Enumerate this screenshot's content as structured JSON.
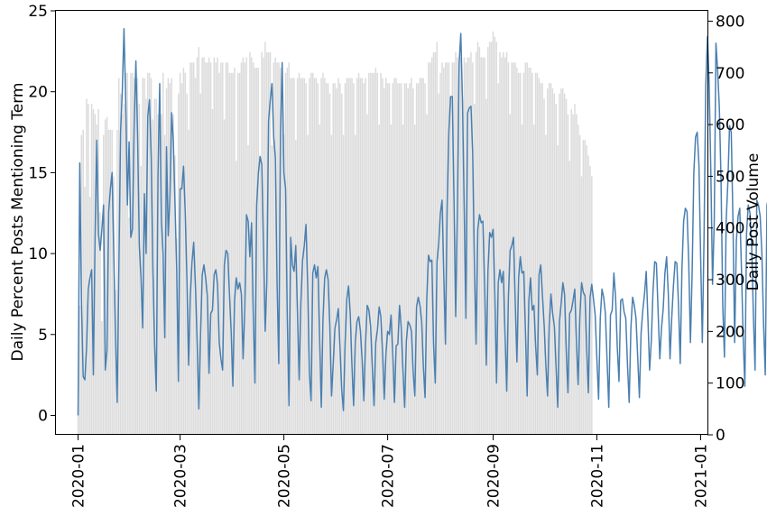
{
  "chart_data": {
    "type": "bar",
    "title": "",
    "xlabel": "",
    "ylabel": "Daily Percent Posts Mentioning Term",
    "y2label": "Daily Post Volume",
    "x_ticks": [
      "2020-01",
      "2020-03",
      "2020-05",
      "2020-07",
      "2020-09",
      "2020-11",
      "2021-01"
    ],
    "y_ticks": [
      "0",
      "5",
      "10",
      "15",
      "20",
      "25"
    ],
    "y2_ticks": [
      "0",
      "100",
      "200",
      "300",
      "400",
      "500",
      "600",
      "700",
      "800"
    ],
    "xlim": [
      "2019-12-19",
      "2021-01-05"
    ],
    "ylim": [
      -1.2,
      25
    ],
    "y2lim": [
      0,
      820
    ],
    "grid": false,
    "legend": "none",
    "colors": {
      "bars": "#dcdcdc",
      "line": "#4a7fb0"
    },
    "series": [
      {
        "type": "bar",
        "axis": "right",
        "start_date": "2020-01-01",
        "values": [
          50,
          250,
          580,
          590,
          480,
          650,
          640,
          460,
          640,
          630,
          620,
          600,
          630,
          430,
          220,
          580,
          610,
          615,
          590,
          590,
          590,
          500,
          280,
          590,
          690,
          660,
          620,
          640,
          700,
          700,
          420,
          700,
          700,
          690,
          680,
          690,
          640,
          520,
          690,
          690,
          650,
          700,
          700,
          690,
          610,
          650,
          650,
          620,
          630,
          620,
          700,
          580,
          670,
          690,
          680,
          690,
          620,
          540,
          380,
          660,
          700,
          680,
          710,
          700,
          660,
          590,
          720,
          720,
          720,
          690,
          730,
          750,
          660,
          730,
          730,
          720,
          720,
          730,
          720,
          630,
          730,
          720,
          730,
          700,
          720,
          720,
          610,
          720,
          720,
          700,
          700,
          700,
          710,
          530,
          700,
          700,
          720,
          730,
          720,
          730,
          560,
          740,
          730,
          720,
          710,
          710,
          710,
          540,
          740,
          730,
          760,
          740,
          740,
          740,
          560,
          720,
          730,
          720,
          720,
          710,
          720,
          580,
          700,
          710,
          720,
          690,
          690,
          690,
          570,
          690,
          700,
          690,
          690,
          690,
          680,
          580,
          690,
          700,
          700,
          690,
          690,
          680,
          600,
          690,
          700,
          690,
          680,
          680,
          660,
          580,
          680,
          680,
          670,
          690,
          680,
          660,
          580,
          680,
          690,
          690,
          690,
          690,
          680,
          580,
          690,
          700,
          690,
          690,
          680,
          690,
          620,
          700,
          700,
          700,
          700,
          710,
          700,
          600,
          700,
          690,
          670,
          690,
          680,
          680,
          600,
          680,
          690,
          690,
          680,
          680,
          680,
          600,
          680,
          680,
          670,
          680,
          690,
          670,
          600,
          680,
          680,
          690,
          690,
          690,
          680,
          620,
          720,
          720,
          730,
          740,
          740,
          760,
          660,
          700,
          720,
          710,
          720,
          720,
          720,
          650,
          720,
          720,
          740,
          730,
          720,
          730,
          650,
          730,
          720,
          730,
          730,
          740,
          720,
          640,
          740,
          760,
          750,
          730,
          730,
          730,
          650,
          750,
          760,
          760,
          780,
          770,
          760,
          680,
          740,
          730,
          740,
          730,
          740,
          720,
          620,
          720,
          720,
          720,
          710,
          700,
          700,
          600,
          700,
          720,
          720,
          710,
          710,
          700,
          600,
          700,
          700,
          690,
          680,
          680,
          650,
          580,
          670,
          680,
          680,
          670,
          660,
          640,
          560,
          660,
          670,
          670,
          660,
          650,
          620,
          530,
          630,
          620,
          640,
          620,
          600,
          580,
          500,
          570,
          570,
          560,
          540,
          520,
          500
        ]
      },
      {
        "type": "line",
        "axis": "left",
        "start_date": "2020-01-01",
        "values": [
          0.0,
          15.6,
          7.0,
          2.4,
          2.2,
          4.2,
          7.8,
          8.5,
          9.0,
          2.5,
          11.0,
          17.0,
          11.2,
          10.2,
          11.5,
          13.0,
          2.8,
          4.0,
          12.6,
          14.0,
          15.0,
          10.0,
          5.0,
          0.8,
          9.0,
          17.5,
          20.0,
          23.9,
          19.5,
          13.0,
          16.9,
          11.0,
          11.5,
          18.0,
          21.9,
          17.3,
          10.5,
          8.5,
          5.4,
          13.7,
          10.0,
          18.5,
          19.5,
          16.0,
          9.0,
          4.3,
          1.5,
          15.0,
          20.5,
          12.0,
          10.0,
          4.8,
          16.6,
          11.1,
          13.5,
          18.7,
          17.0,
          13.0,
          9.0,
          2.1,
          14.0,
          14.0,
          15.4,
          12.5,
          8.4,
          3.1,
          7.4,
          9.5,
          10.7,
          8.0,
          4.6,
          0.4,
          5.0,
          8.7,
          9.3,
          8.5,
          7.4,
          2.6,
          6.3,
          6.5,
          8.7,
          9.0,
          8.1,
          4.5,
          3.5,
          2.8,
          9.3,
          10.2,
          10.0,
          7.5,
          5.2,
          1.8,
          7.1,
          8.5,
          7.8,
          8.2,
          7.5,
          3.5,
          6.5,
          12.4,
          12.0,
          9.8,
          11.9,
          6.3,
          2.0,
          13.0,
          15.0,
          16.0,
          15.5,
          10.6,
          5.2,
          8.3,
          18.2,
          19.5,
          20.5,
          17.2,
          15.9,
          8.1,
          3.2,
          17.4,
          21.8,
          15.0,
          14.0,
          6.0,
          0.6,
          11.0,
          9.3,
          8.9,
          10.5,
          6.3,
          2.2,
          7.0,
          9.6,
          10.5,
          11.8,
          8.0,
          2.6,
          0.9,
          8.8,
          9.3,
          8.5,
          9.2,
          4.8,
          0.5,
          6.0,
          8.5,
          9.0,
          8.4,
          5.6,
          1.2,
          3.2,
          5.4,
          5.9,
          6.6,
          4.2,
          1.6,
          0.3,
          4.5,
          7.2,
          8.0,
          6.3,
          3.1,
          0.6,
          4.6,
          5.8,
          6.1,
          5.2,
          3.4,
          0.9,
          4.5,
          6.8,
          6.5,
          5.5,
          3.0,
          0.6,
          4.5,
          5.3,
          6.7,
          6.1,
          3.9,
          1.0,
          3.8,
          5.2,
          5.0,
          6.2,
          3.8,
          0.8,
          4.3,
          4.4,
          6.8,
          5.4,
          2.8,
          0.5,
          4.6,
          5.8,
          5.6,
          5.2,
          2.7,
          1.2,
          6.7,
          7.3,
          6.8,
          5.8,
          3.0,
          1.1,
          7.2,
          9.9,
          9.5,
          9.6,
          4.4,
          2.0,
          9.5,
          10.6,
          12.5,
          13.3,
          8.7,
          4.4,
          13.0,
          17.6,
          19.7,
          19.7,
          13.3,
          6.1,
          12.6,
          21.7,
          23.6,
          19.4,
          12.8,
          6.0,
          18.7,
          19.0,
          19.1,
          16.2,
          9.4,
          4.4,
          11.5,
          12.4,
          11.9,
          12.0,
          8.0,
          3.1,
          9.0,
          11.3,
          11.0,
          11.5,
          7.5,
          2.0,
          8.2,
          9.0,
          8.2,
          8.9,
          5.0,
          1.5,
          7.4,
          10.2,
          10.5,
          11.0,
          7.0,
          3.3,
          8.5,
          9.8,
          8.8,
          8.9,
          5.2,
          1.2,
          7.1,
          8.5,
          6.5,
          6.8,
          4.3,
          2.5,
          8.7,
          9.3,
          7.4,
          5.6,
          3.1,
          1.2,
          5.6,
          7.5,
          6.3,
          5.5,
          3.0,
          0.5,
          5.8,
          6.9,
          8.2,
          7.5,
          4.0,
          1.4,
          6.3,
          6.5,
          7.1,
          7.8,
          4.5,
          1.9,
          6.1,
          8.2,
          7.6,
          7.4,
          4.1,
          1.4,
          7.3,
          8.1,
          7.2,
          6.2,
          3.5,
          1.0,
          6.0,
          7.8,
          7.3,
          6.3,
          3.4,
          0.5,
          6.2,
          6.5,
          8.8,
          7.3,
          4.2,
          2.1,
          7.1,
          7.2,
          6.4,
          6.0,
          3.1,
          0.8,
          5.4,
          7.3,
          6.8,
          6.0,
          3.6,
          1.1,
          5.1,
          6.5,
          7.5,
          8.9,
          6.0,
          2.8,
          4.6,
          7.7,
          9.5,
          9.4,
          6.4,
          3.5,
          5.4,
          6.6,
          8.8,
          9.8,
          7.5,
          3.5,
          6.0,
          8.0,
          9.5,
          9.4,
          6.8,
          3.2,
          9.0,
          12.0,
          12.8,
          12.6,
          9.5,
          4.5,
          8.8,
          15.0,
          17.2,
          17.5,
          15.5,
          9.8,
          4.5,
          11.0,
          20.3,
          23.4,
          20.5,
          15.0,
          8.1,
          12.0,
          23.0,
          21.3,
          19.0,
          14.5,
          6.8,
          3.6,
          12.0,
          14.4,
          17.9,
          17.5,
          12.0,
          4.5,
          10.8,
          12.3,
          12.8,
          9.0,
          4.8,
          1.8,
          11.3,
          13.0,
          12.5,
          10.5,
          6.2,
          2.8,
          13.3,
          13.0,
          12.3,
          10.0,
          5.6,
          2.5,
          13.0,
          13.5,
          12.8,
          9.0,
          4.3,
          1.6,
          8.6,
          9.5,
          9.0,
          8.5,
          5.0,
          1.8,
          9.3,
          8.8,
          8.6,
          8.3,
          5.2,
          2.5,
          8.9,
          9.5,
          9.2,
          8.0,
          4.8,
          1.2,
          8.2,
          8.5,
          8.0,
          7.3,
          4.0,
          0.7,
          5.2,
          8.8,
          8.5,
          9.2,
          6.0,
          1.8,
          8.0,
          8.3,
          8.2,
          7.6,
          4.9,
          1.5,
          6.3,
          5.0,
          5.2,
          4.8,
          2.5,
          1.0,
          5.8,
          6.6,
          6.3,
          4.8,
          2.6,
          1.8,
          3.0,
          5.1,
          5.0,
          4.5,
          2.5,
          1.0
        ]
      }
    ]
  }
}
